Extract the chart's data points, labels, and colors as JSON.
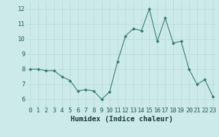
{
  "xlabel": "Humidex (Indice chaleur)",
  "x_values": [
    0,
    1,
    2,
    3,
    4,
    5,
    6,
    7,
    8,
    9,
    10,
    11,
    12,
    13,
    14,
    15,
    16,
    17,
    18,
    19,
    20,
    21,
    22,
    23
  ],
  "y_values": [
    8.0,
    8.0,
    7.9,
    7.9,
    7.5,
    7.25,
    6.55,
    6.65,
    6.55,
    6.0,
    6.5,
    8.5,
    10.2,
    10.7,
    10.55,
    12.0,
    9.85,
    11.4,
    9.75,
    9.85,
    8.0,
    7.0,
    7.3,
    6.2
  ],
  "line_color": "#2e7b6e",
  "marker": "D",
  "marker_size": 2.0,
  "bg_color": "#cceae8",
  "grid_color": "#b8d8d5",
  "ylim": [
    5.5,
    12.5
  ],
  "yticks": [
    6,
    7,
    8,
    9,
    10,
    11,
    12
  ],
  "xlim": [
    -0.5,
    23.5
  ],
  "tick_fontsize": 6.5,
  "label_fontsize": 7.5
}
